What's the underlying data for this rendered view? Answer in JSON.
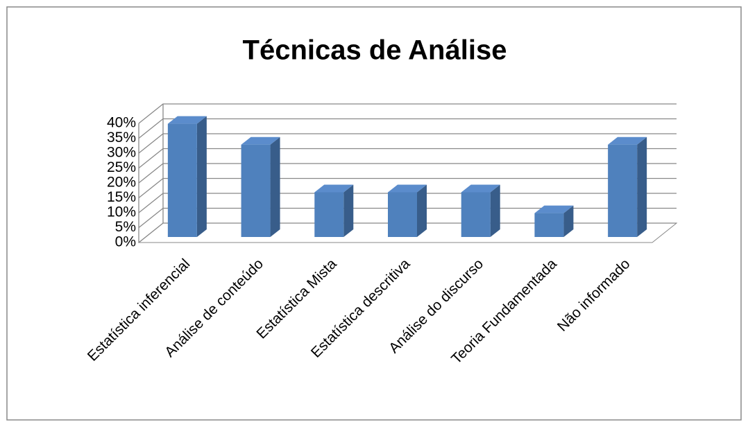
{
  "chart_data": {
    "type": "bar3d",
    "title": "Técnicas de Análise",
    "categories": [
      "Estatística inferencial",
      "Análise de conteúdo",
      "Estatística Mista",
      "Estatística descritiva",
      "Análise do discurso",
      "Teoria Fundamentada",
      "Não informado"
    ],
    "values": [
      38,
      31,
      15,
      15,
      15,
      8,
      31
    ],
    "color": "#4f81bd",
    "ylim": [
      0,
      40
    ],
    "yticks": [
      {
        "value": 0,
        "label": "0%"
      },
      {
        "value": 5,
        "label": "5%"
      },
      {
        "value": 10,
        "label": "10%"
      },
      {
        "value": 15,
        "label": "15%"
      },
      {
        "value": 20,
        "label": "20%"
      },
      {
        "value": 25,
        "label": "25%"
      },
      {
        "value": 30,
        "label": "30%"
      },
      {
        "value": 35,
        "label": "35%"
      },
      {
        "value": 40,
        "label": "40%"
      }
    ],
    "grid": true
  }
}
